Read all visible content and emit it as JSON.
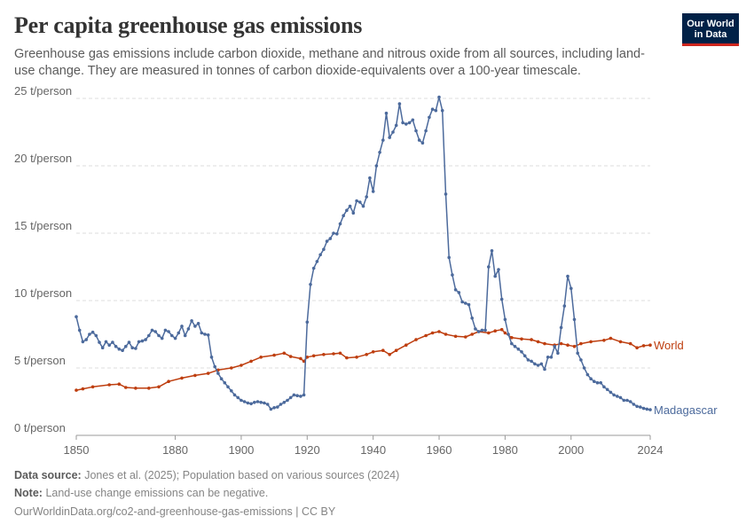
{
  "title": "Per capita greenhouse gas emissions",
  "subtitle": "Greenhouse gas emissions include carbon dioxide, methane and nitrous oxide from all sources, including land-use change. They are measured in tonnes of carbon dioxide-equivalents over a 100-year timescale.",
  "logo": {
    "line1": "Our World",
    "line2": "in Data",
    "bg_color": "#002147",
    "accent_color": "#ce261e"
  },
  "footer": {
    "source_label": "Data source:",
    "source_text": "Jones et al. (2025); Population based on various sources (2024)",
    "note_label": "Note:",
    "note_text": "Land-use change emissions can be negative.",
    "url_text": "OurWorldinData.org/co2-and-greenhouse-gas-emissions | CC BY"
  },
  "chart_data": {
    "type": "line",
    "xlim": [
      1850,
      2024
    ],
    "ylim": [
      0,
      25
    ],
    "x_ticks": [
      1850,
      1880,
      1900,
      1920,
      1940,
      1960,
      1980,
      2000,
      2024
    ],
    "y_ticks": [
      0,
      5,
      10,
      15,
      20,
      25
    ],
    "y_tick_labels": [
      "0 t/person",
      "5 t/person",
      "10 t/person",
      "15 t/person",
      "20 t/person",
      "25 t/person"
    ],
    "grid": "horizontal dashed",
    "legend": "line-end labels",
    "series": [
      {
        "name": "World",
        "color": "#be3e0f",
        "points": [
          [
            1850,
            3.35
          ],
          [
            1852,
            3.45
          ],
          [
            1855,
            3.6
          ],
          [
            1860,
            3.75
          ],
          [
            1863,
            3.8
          ],
          [
            1865,
            3.55
          ],
          [
            1868,
            3.5
          ],
          [
            1872,
            3.5
          ],
          [
            1875,
            3.6
          ],
          [
            1878,
            4.0
          ],
          [
            1882,
            4.25
          ],
          [
            1886,
            4.45
          ],
          [
            1890,
            4.6
          ],
          [
            1893,
            4.85
          ],
          [
            1897,
            5.0
          ],
          [
            1900,
            5.2
          ],
          [
            1903,
            5.5
          ],
          [
            1906,
            5.8
          ],
          [
            1910,
            5.95
          ],
          [
            1913,
            6.1
          ],
          [
            1915,
            5.85
          ],
          [
            1918,
            5.7
          ],
          [
            1919,
            5.5
          ],
          [
            1920,
            5.8
          ],
          [
            1922,
            5.9
          ],
          [
            1925,
            6.0
          ],
          [
            1928,
            6.05
          ],
          [
            1930,
            6.1
          ],
          [
            1932,
            5.75
          ],
          [
            1935,
            5.8
          ],
          [
            1938,
            6.0
          ],
          [
            1940,
            6.2
          ],
          [
            1943,
            6.3
          ],
          [
            1945,
            6.0
          ],
          [
            1947,
            6.3
          ],
          [
            1950,
            6.7
          ],
          [
            1953,
            7.1
          ],
          [
            1956,
            7.4
          ],
          [
            1958,
            7.6
          ],
          [
            1960,
            7.7
          ],
          [
            1962,
            7.5
          ],
          [
            1965,
            7.35
          ],
          [
            1968,
            7.3
          ],
          [
            1970,
            7.5
          ],
          [
            1972,
            7.7
          ],
          [
            1975,
            7.6
          ],
          [
            1977,
            7.75
          ],
          [
            1979,
            7.85
          ],
          [
            1980,
            7.6
          ],
          [
            1982,
            7.25
          ],
          [
            1985,
            7.15
          ],
          [
            1988,
            7.1
          ],
          [
            1990,
            6.95
          ],
          [
            1992,
            6.8
          ],
          [
            1995,
            6.7
          ],
          [
            1997,
            6.8
          ],
          [
            1999,
            6.7
          ],
          [
            2001,
            6.6
          ],
          [
            2003,
            6.8
          ],
          [
            2006,
            6.95
          ],
          [
            2010,
            7.05
          ],
          [
            2012,
            7.2
          ],
          [
            2015,
            6.95
          ],
          [
            2018,
            6.8
          ],
          [
            2020,
            6.5
          ],
          [
            2022,
            6.65
          ],
          [
            2024,
            6.7
          ]
        ]
      },
      {
        "name": "Madagascar",
        "color": "#4c6a9c",
        "points": [
          [
            1850,
            8.8
          ],
          [
            1851,
            7.8
          ],
          [
            1852,
            6.95
          ],
          [
            1853,
            7.1
          ],
          [
            1854,
            7.5
          ],
          [
            1855,
            7.65
          ],
          [
            1856,
            7.4
          ],
          [
            1857,
            6.9
          ],
          [
            1858,
            6.5
          ],
          [
            1859,
            6.95
          ],
          [
            1860,
            6.7
          ],
          [
            1861,
            6.9
          ],
          [
            1862,
            6.6
          ],
          [
            1863,
            6.4
          ],
          [
            1864,
            6.3
          ],
          [
            1865,
            6.6
          ],
          [
            1866,
            6.9
          ],
          [
            1867,
            6.5
          ],
          [
            1868,
            6.45
          ],
          [
            1869,
            6.95
          ],
          [
            1870,
            7.0
          ],
          [
            1871,
            7.1
          ],
          [
            1872,
            7.4
          ],
          [
            1873,
            7.8
          ],
          [
            1874,
            7.7
          ],
          [
            1875,
            7.4
          ],
          [
            1876,
            7.2
          ],
          [
            1877,
            7.8
          ],
          [
            1878,
            7.7
          ],
          [
            1879,
            7.4
          ],
          [
            1880,
            7.2
          ],
          [
            1881,
            7.6
          ],
          [
            1882,
            8.1
          ],
          [
            1883,
            7.4
          ],
          [
            1884,
            7.9
          ],
          [
            1885,
            8.5
          ],
          [
            1886,
            8.1
          ],
          [
            1887,
            8.3
          ],
          [
            1888,
            7.6
          ],
          [
            1889,
            7.5
          ],
          [
            1890,
            7.45
          ],
          [
            1891,
            5.8
          ],
          [
            1892,
            5.1
          ],
          [
            1893,
            4.6
          ],
          [
            1894,
            4.2
          ],
          [
            1895,
            3.9
          ],
          [
            1896,
            3.6
          ],
          [
            1897,
            3.3
          ],
          [
            1898,
            3.0
          ],
          [
            1899,
            2.8
          ],
          [
            1900,
            2.6
          ],
          [
            1901,
            2.5
          ],
          [
            1902,
            2.4
          ],
          [
            1903,
            2.35
          ],
          [
            1904,
            2.45
          ],
          [
            1905,
            2.5
          ],
          [
            1906,
            2.45
          ],
          [
            1907,
            2.4
          ],
          [
            1908,
            2.3
          ],
          [
            1909,
            1.95
          ],
          [
            1910,
            2.05
          ],
          [
            1911,
            2.1
          ],
          [
            1912,
            2.3
          ],
          [
            1913,
            2.45
          ],
          [
            1914,
            2.6
          ],
          [
            1915,
            2.8
          ],
          [
            1916,
            3.0
          ],
          [
            1917,
            2.95
          ],
          [
            1918,
            2.9
          ],
          [
            1919,
            3.0
          ],
          [
            1920,
            8.4
          ],
          [
            1921,
            11.2
          ],
          [
            1922,
            12.4
          ],
          [
            1923,
            12.9
          ],
          [
            1924,
            13.4
          ],
          [
            1925,
            13.8
          ],
          [
            1926,
            14.4
          ],
          [
            1927,
            14.6
          ],
          [
            1928,
            15.0
          ],
          [
            1929,
            14.95
          ],
          [
            1930,
            15.7
          ],
          [
            1931,
            16.3
          ],
          [
            1932,
            16.7
          ],
          [
            1933,
            17.0
          ],
          [
            1934,
            16.5
          ],
          [
            1935,
            17.4
          ],
          [
            1936,
            17.3
          ],
          [
            1937,
            17.0
          ],
          [
            1938,
            17.7
          ],
          [
            1939,
            19.1
          ],
          [
            1940,
            18.1
          ],
          [
            1941,
            20.0
          ],
          [
            1942,
            21.0
          ],
          [
            1943,
            21.9
          ],
          [
            1944,
            23.9
          ],
          [
            1945,
            22.1
          ],
          [
            1946,
            22.5
          ],
          [
            1947,
            23.0
          ],
          [
            1948,
            24.6
          ],
          [
            1949,
            23.2
          ],
          [
            1950,
            23.1
          ],
          [
            1951,
            23.2
          ],
          [
            1952,
            23.4
          ],
          [
            1953,
            22.6
          ],
          [
            1954,
            21.9
          ],
          [
            1955,
            21.7
          ],
          [
            1956,
            22.6
          ],
          [
            1957,
            23.6
          ],
          [
            1958,
            24.2
          ],
          [
            1959,
            24.1
          ],
          [
            1960,
            25.1
          ],
          [
            1961,
            24.1
          ],
          [
            1962,
            17.9
          ],
          [
            1963,
            13.2
          ],
          [
            1964,
            11.9
          ],
          [
            1965,
            10.8
          ],
          [
            1966,
            10.6
          ],
          [
            1967,
            9.9
          ],
          [
            1968,
            9.8
          ],
          [
            1969,
            9.7
          ],
          [
            1970,
            8.7
          ],
          [
            1971,
            7.9
          ],
          [
            1972,
            7.7
          ],
          [
            1973,
            7.8
          ],
          [
            1974,
            7.8
          ],
          [
            1975,
            12.5
          ],
          [
            1976,
            13.7
          ],
          [
            1977,
            11.8
          ],
          [
            1978,
            12.3
          ],
          [
            1979,
            10.1
          ],
          [
            1980,
            8.6
          ],
          [
            1981,
            7.5
          ],
          [
            1982,
            6.8
          ],
          [
            1983,
            6.6
          ],
          [
            1984,
            6.4
          ],
          [
            1985,
            6.2
          ],
          [
            1986,
            5.9
          ],
          [
            1987,
            5.6
          ],
          [
            1988,
            5.5
          ],
          [
            1989,
            5.3
          ],
          [
            1990,
            5.2
          ],
          [
            1991,
            5.3
          ],
          [
            1992,
            4.9
          ],
          [
            1993,
            5.8
          ],
          [
            1994,
            5.8
          ],
          [
            1995,
            6.6
          ],
          [
            1996,
            6.1
          ],
          [
            1997,
            8.0
          ],
          [
            1998,
            9.6
          ],
          [
            1999,
            11.8
          ],
          [
            2000,
            10.9
          ],
          [
            2001,
            8.6
          ],
          [
            2002,
            6.1
          ],
          [
            2003,
            5.6
          ],
          [
            2004,
            5.0
          ],
          [
            2005,
            4.5
          ],
          [
            2006,
            4.2
          ],
          [
            2007,
            4.0
          ],
          [
            2008,
            3.9
          ],
          [
            2009,
            3.9
          ],
          [
            2010,
            3.6
          ],
          [
            2011,
            3.4
          ],
          [
            2012,
            3.2
          ],
          [
            2013,
            3.0
          ],
          [
            2014,
            2.9
          ],
          [
            2015,
            2.8
          ],
          [
            2016,
            2.6
          ],
          [
            2017,
            2.6
          ],
          [
            2018,
            2.5
          ],
          [
            2019,
            2.3
          ],
          [
            2020,
            2.15
          ],
          [
            2021,
            2.1
          ],
          [
            2022,
            2.0
          ],
          [
            2023,
            1.95
          ],
          [
            2024,
            1.9
          ]
        ]
      }
    ]
  }
}
